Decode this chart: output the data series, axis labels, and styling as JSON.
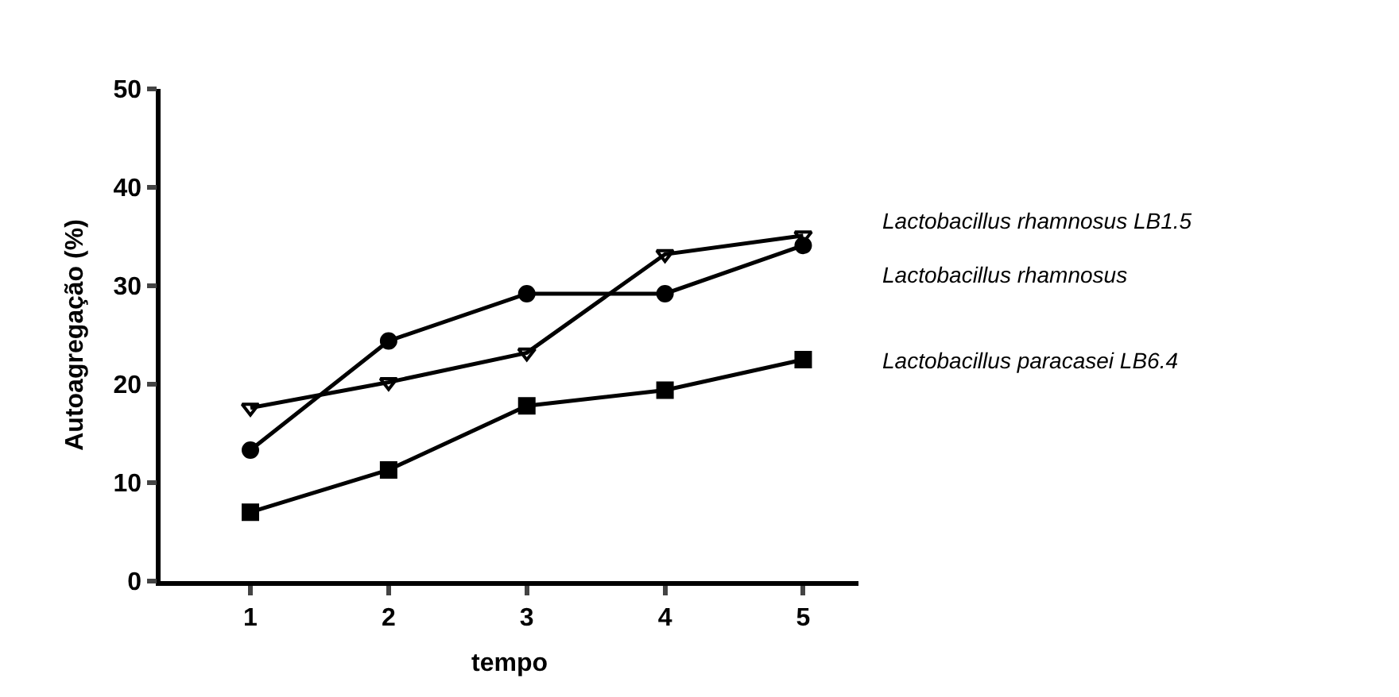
{
  "chart_data": {
    "type": "line",
    "xlabel": "tempo",
    "ylabel": "Autoagregação (%)",
    "x": [
      1,
      2,
      3,
      4,
      5
    ],
    "xlim": [
      0.35,
      5.4
    ],
    "xticks": [
      1,
      2,
      3,
      4,
      5
    ],
    "ylim": [
      0,
      50
    ],
    "yticks": [
      0,
      10,
      20,
      30,
      40,
      50
    ],
    "legend": false,
    "line_style": "solid",
    "series": [
      {
        "name": "Lactobacillus rhamnosus LB1.5",
        "color": "#000000",
        "marker": "triangle",
        "values": [
          17.6,
          20.2,
          23.2,
          33.2,
          35.1
        ]
      },
      {
        "name": "Lactobacillus rhamnosus",
        "color": "#000000",
        "marker": "circle",
        "values": [
          13.3,
          24.4,
          29.2,
          29.2,
          34.1
        ]
      },
      {
        "name": "Lactobacillus paracasei LB6.4",
        "color": "#000000",
        "marker": "square",
        "values": [
          7.0,
          11.3,
          17.8,
          19.4,
          22.5
        ]
      }
    ]
  }
}
